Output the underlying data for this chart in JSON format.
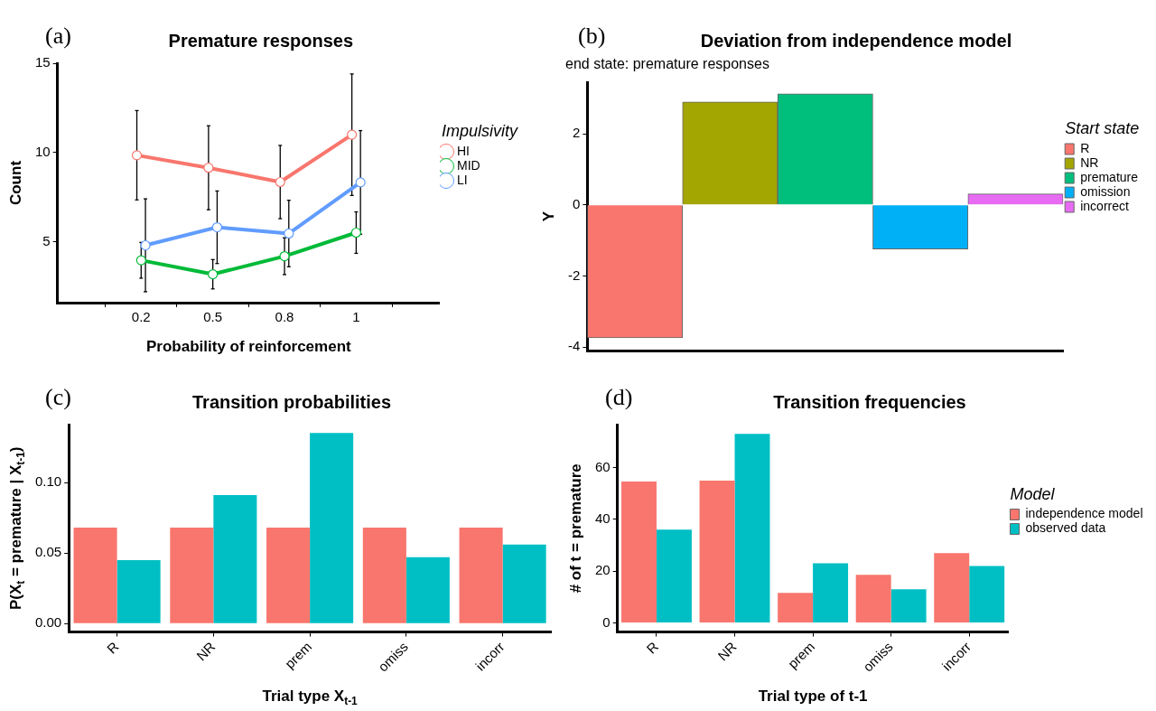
{
  "chart_data": [
    {
      "type": "line",
      "title": "Premature responses",
      "xlabel": "Probability of reinforcement",
      "ylabel": "Count",
      "legend_title": "Impulsivity",
      "legend": "right",
      "marker": "circle",
      "grid": false,
      "annotations": [
        "(a)"
      ],
      "categories": [
        "0.2",
        "0.5",
        "0.8",
        "1"
      ],
      "ylim": [
        1.6,
        15
      ],
      "yticks": [
        5,
        10,
        15
      ],
      "series": [
        {
          "name": "HI",
          "color": "#f8766d",
          "values": [
            9.85,
            9.15,
            8.35,
            11.0
          ],
          "errors": [
            2.5,
            2.35,
            2.05,
            3.4
          ]
        },
        {
          "name": "MID",
          "color": "#00ba38",
          "values": [
            3.97,
            3.19,
            4.2,
            5.52
          ],
          "errors": [
            1.0,
            0.82,
            1.03,
            1.16
          ]
        },
        {
          "name": "LI",
          "color": "#619cff",
          "values": [
            4.81,
            5.82,
            5.47,
            8.33
          ],
          "errors": [
            2.6,
            2.03,
            1.86,
            2.9
          ]
        }
      ]
    },
    {
      "type": "bar",
      "title": "Deviation from independence model",
      "subtitle": "end state: premature responses",
      "ylabel": "Y",
      "legend_title": "Start state",
      "legend": "right",
      "grid": false,
      "tick_labels": "y",
      "annotations": [
        "(b)"
      ],
      "categories": [
        null,
        null,
        null,
        null,
        null
      ],
      "ylim": [
        -4.1,
        3.45
      ],
      "yticks": [
        -4,
        -2,
        0,
        2
      ],
      "series": [
        {
          "name": "R",
          "color": "#f8766d",
          "values": [
            -3.74,
            null,
            null,
            null,
            null
          ]
        },
        {
          "name": "NR",
          "color": "#a3a500",
          "values": [
            null,
            2.9,
            null,
            null,
            null
          ]
        },
        {
          "name": "premature",
          "color": "#00bf7d",
          "values": [
            null,
            null,
            3.13,
            null,
            null
          ]
        },
        {
          "name": "omission",
          "color": "#00b0f6",
          "values": [
            null,
            null,
            null,
            -1.24,
            null
          ]
        },
        {
          "name": "incorrect",
          "color": "#e76bf3",
          "values": [
            null,
            null,
            null,
            null,
            0.31
          ]
        }
      ]
    },
    {
      "type": "bar",
      "title": "Transition probabilities",
      "xlabel": "Trial type X$_{t-1}$",
      "ylabel": "P(X$_{t}$ = premature | X$_{t-1}$)",
      "legend": false,
      "grid": false,
      "annotations": [
        "(c)"
      ],
      "categories": [
        "R",
        "NR",
        "prem",
        "omiss",
        "incorr"
      ],
      "ylim": [
        -0.006,
        0.141
      ],
      "yticks": [
        {
          "value": 0,
          "label": "0.00"
        },
        {
          "value": 0.05,
          "label": "0.05"
        },
        {
          "value": 0.1,
          "label": "0.10"
        }
      ],
      "series": [
        {
          "color": "#f8766d",
          "values": [
            0.068,
            0.068,
            0.068,
            0.068,
            0.068
          ]
        },
        {
          "color": "#00bfc4",
          "values": [
            0.045,
            0.091,
            0.135,
            0.047,
            0.056
          ]
        }
      ]
    },
    {
      "type": "bar",
      "title": "Transition frequencies",
      "xlabel": "Trial type of t-1",
      "ylabel": "# of t = premature",
      "legend_title": "Model",
      "legend": "right",
      "grid": false,
      "annotations": [
        "(d)"
      ],
      "categories": [
        "R",
        "NR",
        "prem",
        "omiss",
        "incorr"
      ],
      "ylim": [
        -3.5,
        76.6
      ],
      "yticks": [
        0,
        20,
        40,
        60
      ],
      "series": [
        {
          "name": "independence model",
          "color": "#f8766d",
          "values": [
            54.6,
            55.0,
            11.6,
            18.6,
            27.0
          ]
        },
        {
          "name": "observed data",
          "color": "#00bfc4",
          "values": [
            36.0,
            73.0,
            23.0,
            13.0,
            22.0
          ]
        }
      ]
    }
  ]
}
